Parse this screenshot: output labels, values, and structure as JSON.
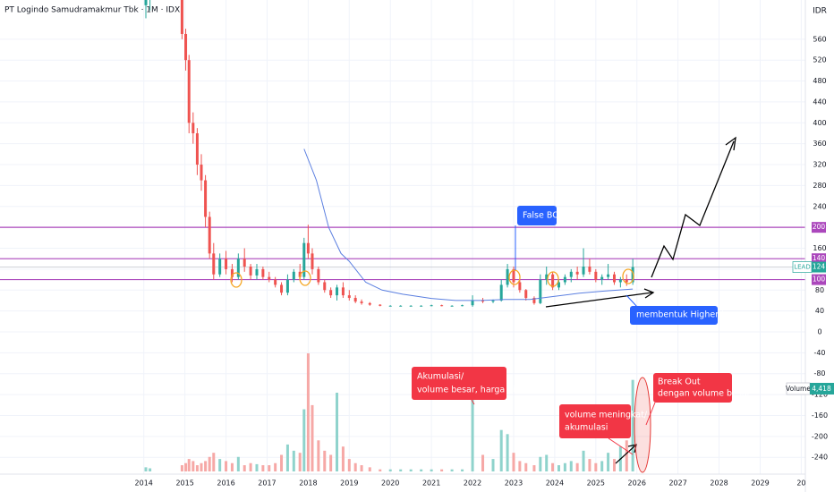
{
  "chart_data": {
    "type": "candlestick",
    "title": "PT Logindo Samudramakmur Tbk · 1M · IDX",
    "currency": "IDR",
    "symbol": "LEAD",
    "grid": true,
    "up_color": "#26a69a",
    "down_color": "#ef5350",
    "volume_up_color": "#8fd3cc",
    "volume_down_color": "#f6a8a6",
    "ma_color": "#5b7fe0",
    "xlim": [
      2010.5,
      2030.1
    ],
    "xticks": [
      2014,
      2015,
      2016,
      2017,
      2018,
      2019,
      2020,
      2021,
      2022,
      2023,
      2024,
      2025,
      2026,
      2027,
      2028,
      2029,
      {
        "value": 2030,
        "label": "20"
      }
    ],
    "ylim": [
      -267,
      635
    ],
    "yticks": [
      -240,
      -200,
      -160,
      -120,
      -80,
      -40,
      0,
      40,
      80,
      120,
      160,
      200,
      240,
      280,
      320,
      360,
      400,
      440,
      480,
      520,
      560
    ],
    "volume_lim": [
      0,
      5700
    ],
    "x": [
      2014.05,
      2014.15,
      2014.93,
      2015.02,
      2015.1,
      2015.2,
      2015.3,
      2015.4,
      2015.5,
      2015.6,
      2015.7,
      2015.85,
      2016.0,
      2016.15,
      2016.3,
      2016.45,
      2016.6,
      2016.75,
      2016.9,
      2017.05,
      2017.2,
      2017.35,
      2017.5,
      2017.65,
      2017.8,
      2017.9,
      2018.0,
      2018.1,
      2018.25,
      2018.4,
      2018.55,
      2018.7,
      2018.85,
      2019.0,
      2019.15,
      2019.3,
      2019.5,
      2019.75,
      2020.0,
      2020.25,
      2020.5,
      2020.75,
      2021.0,
      2021.25,
      2021.5,
      2021.75,
      2022.0,
      2022.25,
      2022.5,
      2022.7,
      2022.85,
      2023.0,
      2023.15,
      2023.3,
      2023.5,
      2023.65,
      2023.8,
      2023.95,
      2024.1,
      2024.25,
      2024.4,
      2024.55,
      2024.7,
      2024.85,
      2025.0,
      2025.15,
      2025.3,
      2025.45,
      2025.6,
      2025.75,
      2025.9
    ],
    "open": [
      625,
      635,
      640,
      570,
      520,
      400,
      380,
      320,
      290,
      220,
      150,
      110,
      140,
      120,
      105,
      140,
      125,
      108,
      120,
      105,
      100,
      90,
      75,
      100,
      115,
      105,
      170,
      150,
      120,
      95,
      80,
      70,
      85,
      70,
      65,
      58,
      55,
      52,
      50,
      50,
      50,
      50,
      50,
      51,
      50,
      50,
      51,
      60,
      58,
      60,
      90,
      120,
      95,
      80,
      65,
      55,
      100,
      110,
      85,
      95,
      105,
      115,
      110,
      125,
      115,
      100,
      105,
      110,
      95,
      100,
      95
    ],
    "high": [
      650,
      650,
      660,
      580,
      530,
      420,
      390,
      340,
      300,
      230,
      170,
      150,
      155,
      130,
      150,
      160,
      130,
      130,
      125,
      115,
      105,
      95,
      110,
      120,
      130,
      180,
      205,
      160,
      125,
      100,
      85,
      90,
      95,
      80,
      70,
      62,
      57,
      53,
      51,
      51,
      51,
      51,
      52,
      52,
      51,
      52,
      70,
      65,
      62,
      100,
      130,
      125,
      100,
      82,
      68,
      110,
      125,
      115,
      100,
      110,
      120,
      125,
      160,
      140,
      120,
      110,
      130,
      115,
      105,
      110,
      140
    ],
    "low": [
      600,
      615,
      560,
      500,
      380,
      360,
      300,
      270,
      200,
      140,
      100,
      105,
      110,
      95,
      100,
      115,
      100,
      100,
      100,
      95,
      85,
      70,
      70,
      95,
      100,
      100,
      140,
      110,
      90,
      75,
      65,
      60,
      65,
      60,
      55,
      52,
      50,
      49,
      49,
      49,
      49,
      49,
      49,
      49,
      49,
      49,
      48,
      55,
      55,
      58,
      85,
      85,
      75,
      60,
      52,
      53,
      90,
      80,
      80,
      90,
      95,
      100,
      105,
      110,
      95,
      90,
      100,
      90,
      85,
      88,
      90
    ],
    "close": [
      635,
      640,
      570,
      520,
      400,
      380,
      320,
      290,
      220,
      150,
      110,
      140,
      120,
      105,
      140,
      125,
      108,
      120,
      105,
      100,
      90,
      75,
      100,
      115,
      105,
      170,
      150,
      120,
      95,
      80,
      70,
      85,
      70,
      65,
      58,
      55,
      52,
      50,
      50,
      50,
      50,
      50,
      51,
      50,
      50,
      51,
      60,
      58,
      60,
      90,
      120,
      95,
      80,
      65,
      55,
      100,
      110,
      85,
      95,
      105,
      115,
      110,
      125,
      115,
      100,
      105,
      110,
      95,
      100,
      95,
      124
    ],
    "volume": [
      200,
      150,
      300,
      400,
      600,
      500,
      300,
      400,
      500,
      700,
      900,
      600,
      500,
      400,
      700,
      300,
      400,
      350,
      300,
      300,
      400,
      800,
      1300,
      1000,
      900,
      3000,
      5700,
      3200,
      1500,
      1000,
      800,
      3800,
      1200,
      600,
      400,
      300,
      200,
      100,
      100,
      100,
      100,
      100,
      100,
      100,
      100,
      100,
      3700,
      800,
      600,
      2000,
      1800,
      900,
      500,
      400,
      300,
      700,
      800,
      400,
      300,
      400,
      500,
      400,
      1000,
      600,
      400,
      500,
      900,
      600,
      1200,
      1500,
      4418
    ],
    "volume_label": "Volume",
    "volume_last_label": "4,418",
    "ma": {
      "x": [
        2017.9,
        2018.2,
        2018.5,
        2018.8,
        2019.0,
        2019.4,
        2019.8,
        2020.3,
        2021.0,
        2021.6,
        2022.2,
        2022.8,
        2023.4,
        2024.0,
        2024.6,
        2025.2,
        2025.9
      ],
      "values": [
        350,
        290,
        200,
        150,
        135,
        95,
        80,
        72,
        64,
        60,
        60,
        62,
        62,
        68,
        74,
        78,
        82
      ]
    },
    "levels": [
      {
        "value": 200,
        "color": "#ab47bc"
      },
      {
        "value": 140,
        "color": "#ab47bc"
      },
      {
        "value": 100,
        "color": "#ab47bc"
      }
    ],
    "annotations": {
      "false_bo": [
        "False BO"
      ],
      "higher_low": [
        "membentuk Higher Low"
      ],
      "akumulasi": [
        "Akumulasi/",
        "volume besar, harga diam"
      ],
      "volume_meningkat": [
        "volume meningkat/",
        "akumulasi"
      ],
      "break_out": [
        "Break Out",
        "dengan volume besar"
      ]
    }
  }
}
